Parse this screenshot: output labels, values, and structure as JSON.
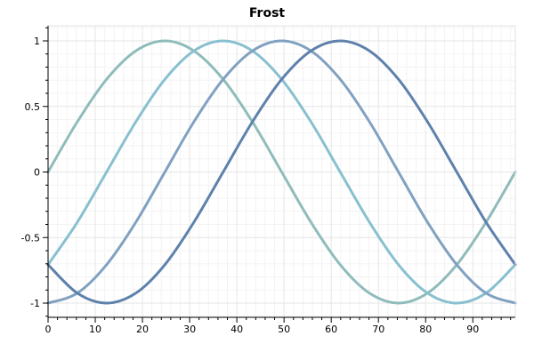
{
  "chart_data": {
    "type": "line",
    "title": "Frost",
    "xlabel": "",
    "ylabel": "",
    "xlim": [
      0,
      99
    ],
    "ylim": [
      -1.1,
      1.1
    ],
    "grid": true,
    "legend": "none",
    "x_ticks": [
      0,
      10,
      20,
      30,
      40,
      50,
      60,
      70,
      80,
      90
    ],
    "x_tick_labels": [
      "0",
      "10",
      "20",
      "30",
      "40",
      "50",
      "60",
      "70",
      "80",
      "90"
    ],
    "y_ticks": [
      1,
      0.5,
      0,
      -0.5,
      -1
    ],
    "y_tick_labels": [
      "1",
      "0.5",
      "0",
      "-0.5",
      "-1"
    ],
    "series": [
      {
        "color": "#8fbcbb",
        "x": [
          0,
          6.2,
          12.4,
          18.6,
          24.75,
          30.9,
          37.1,
          43.3,
          49.5,
          55.7,
          61.9,
          68.1,
          74.25,
          80.4,
          86.6,
          92.8,
          99
        ],
        "y": [
          0,
          0.383,
          0.707,
          0.924,
          1,
          0.924,
          0.707,
          0.383,
          0,
          -0.383,
          -0.707,
          -0.924,
          -1,
          -0.924,
          -0.707,
          -0.383,
          0
        ]
      },
      {
        "color": "#88c0d0",
        "x": [
          0,
          6.2,
          12.4,
          18.6,
          24.75,
          30.9,
          37.1,
          43.3,
          49.5,
          55.7,
          61.9,
          68.1,
          74.25,
          80.4,
          86.6,
          92.8,
          99
        ],
        "y": [
          -0.707,
          -0.383,
          0,
          0.383,
          0.707,
          0.924,
          1,
          0.924,
          0.707,
          0.383,
          0,
          -0.383,
          -0.707,
          -0.924,
          -1,
          -0.924,
          -0.707
        ]
      },
      {
        "color": "#81a1c1",
        "x": [
          0,
          6.2,
          12.4,
          18.6,
          24.75,
          30.9,
          37.1,
          43.3,
          49.5,
          55.7,
          61.9,
          68.1,
          74.25,
          80.4,
          86.6,
          92.8,
          99
        ],
        "y": [
          -1,
          -0.924,
          -0.707,
          -0.383,
          0,
          0.383,
          0.707,
          0.924,
          1,
          0.924,
          0.707,
          0.383,
          0,
          -0.383,
          -0.707,
          -0.924,
          -1
        ]
      },
      {
        "color": "#5e81ac",
        "x": [
          0,
          6.2,
          12.4,
          18.6,
          24.75,
          30.9,
          37.1,
          43.3,
          49.5,
          55.7,
          61.9,
          68.1,
          74.25,
          80.4,
          86.6,
          92.8,
          99
        ],
        "y": [
          -0.707,
          -0.924,
          -1,
          -0.924,
          -0.707,
          -0.383,
          0,
          0.383,
          0.707,
          0.924,
          1,
          0.924,
          0.707,
          0.383,
          0,
          -0.383,
          -0.707
        ]
      }
    ]
  }
}
